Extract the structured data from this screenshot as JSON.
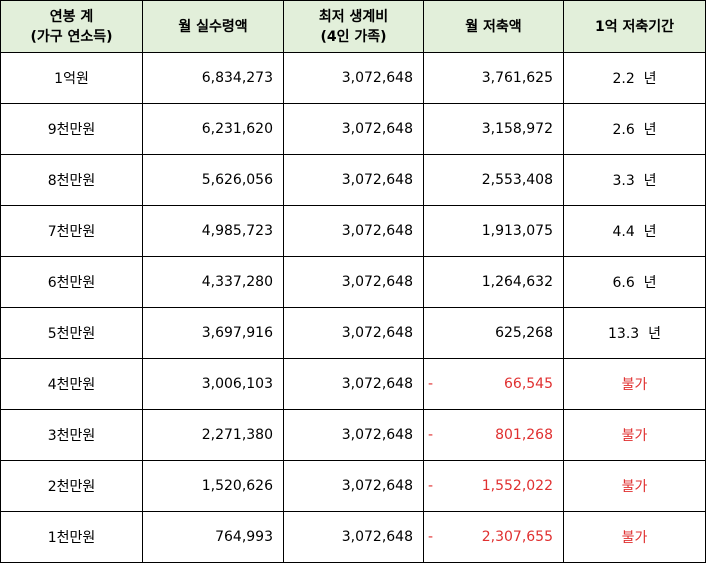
{
  "headers": {
    "col1_line1": "연봉 계",
    "col1_line2": "(가구 연소득)",
    "col2": "월 실수령액",
    "col3_line1": "최저 생계비",
    "col3_line2": "(4인 가족)",
    "col4": "월 저축액",
    "col5": "1억 저축기간"
  },
  "rows": [
    {
      "salary": "1억원",
      "net": "6,834,273",
      "living": "3,072,648",
      "sign": "",
      "saving": "3,761,625",
      "period": "2.2  년"
    },
    {
      "salary": "9천만원",
      "net": "6,231,620",
      "living": "3,072,648",
      "sign": "",
      "saving": "3,158,972",
      "period": "2.6  년"
    },
    {
      "salary": "8천만원",
      "net": "5,626,056",
      "living": "3,072,648",
      "sign": "",
      "saving": "2,553,408",
      "period": "3.3  년"
    },
    {
      "salary": "7천만원",
      "net": "4,985,723",
      "living": "3,072,648",
      "sign": "",
      "saving": "1,913,075",
      "period": "4.4  년"
    },
    {
      "salary": "6천만원",
      "net": "4,337,280",
      "living": "3,072,648",
      "sign": "",
      "saving": "1,264,632",
      "period": "6.6  년"
    },
    {
      "salary": "5천만원",
      "net": "3,697,916",
      "living": "3,072,648",
      "sign": "",
      "saving": "625,268",
      "period": "13.3  년"
    },
    {
      "salary": "4천만원",
      "net": "3,006,103",
      "living": "3,072,648",
      "sign": "-",
      "saving": "66,545",
      "period": "불가"
    },
    {
      "salary": "3천만원",
      "net": "2,271,380",
      "living": "3,072,648",
      "sign": "-",
      "saving": "801,268",
      "period": "불가"
    },
    {
      "salary": "2천만원",
      "net": "1,520,626",
      "living": "3,072,648",
      "sign": "-",
      "saving": "1,552,022",
      "period": "불가"
    },
    {
      "salary": "1천만원",
      "net": "764,993",
      "living": "3,072,648",
      "sign": "-",
      "saving": "2,307,655",
      "period": "불가"
    }
  ],
  "colors": {
    "header_bg": "#e2efda",
    "negative": "#e03030",
    "border": "#000000"
  }
}
